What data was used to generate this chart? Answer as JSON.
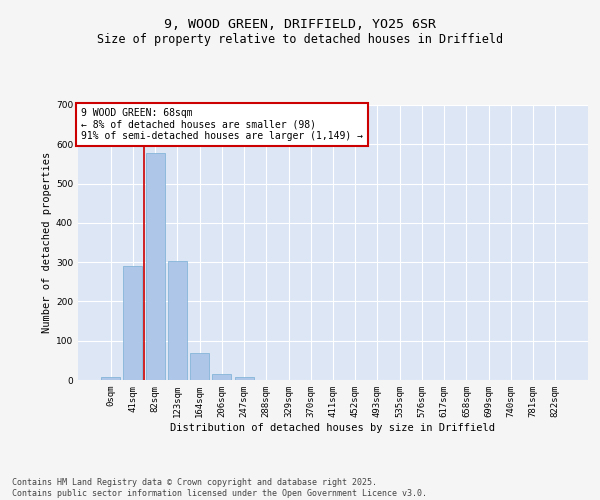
{
  "title": "9, WOOD GREEN, DRIFFIELD, YO25 6SR",
  "subtitle": "Size of property relative to detached houses in Driffield",
  "xlabel": "Distribution of detached houses by size in Driffield",
  "ylabel": "Number of detached properties",
  "bar_values": [
    8,
    289,
    578,
    302,
    70,
    15,
    8,
    0,
    0,
    0,
    0,
    0,
    0,
    0,
    0,
    0,
    0,
    0,
    0,
    0,
    0
  ],
  "bar_labels": [
    "0sqm",
    "41sqm",
    "82sqm",
    "123sqm",
    "164sqm",
    "206sqm",
    "247sqm",
    "288sqm",
    "329sqm",
    "370sqm",
    "411sqm",
    "452sqm",
    "493sqm",
    "535sqm",
    "576sqm",
    "617sqm",
    "658sqm",
    "699sqm",
    "740sqm",
    "781sqm",
    "822sqm"
  ],
  "bar_color": "#aec6e8",
  "bar_edgecolor": "#7aafd4",
  "annotation_text": "9 WOOD GREEN: 68sqm\n← 8% of detached houses are smaller (98)\n91% of semi-detached houses are larger (1,149) →",
  "annotation_box_facecolor": "#ffffff",
  "annotation_box_edgecolor": "#cc0000",
  "vline_x": 1.5,
  "vline_color": "#cc0000",
  "ylim": [
    0,
    700
  ],
  "yticks": [
    0,
    100,
    200,
    300,
    400,
    500,
    600,
    700
  ],
  "plot_bg_color": "#dce6f5",
  "fig_bg_color": "#f5f5f5",
  "footer_text": "Contains HM Land Registry data © Crown copyright and database right 2025.\nContains public sector information licensed under the Open Government Licence v3.0.",
  "title_fontsize": 9.5,
  "subtitle_fontsize": 8.5,
  "label_fontsize": 7.5,
  "tick_fontsize": 6.5,
  "annotation_fontsize": 7.0,
  "footer_fontsize": 6.0
}
